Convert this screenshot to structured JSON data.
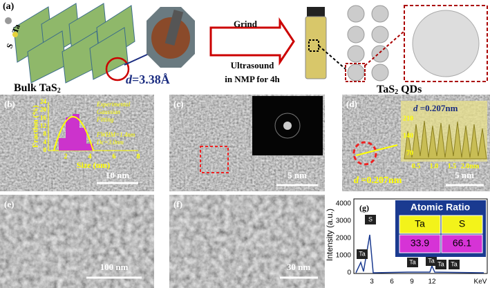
{
  "panel_a": {
    "label": "(a)",
    "atom_s": "S",
    "atom_ta": "Ta",
    "bulk": "Bulk TaS",
    "bulk_sub": "2",
    "spacing_symbol": "d",
    "spacing_value": "=3.38Å",
    "step_top": "Grind",
    "step_bottom_1": "Ultrasound",
    "step_bottom_2": "in NMP  for 4h",
    "qd": "TaS",
    "qd_sub": "2",
    "qd_end": " QDs"
  },
  "panel_b": {
    "label": "(b)",
    "y_axis": "Fraction (%)",
    "x_axis": "Size (nm)",
    "yticks": [
      "0",
      "4",
      "8",
      "12",
      "16",
      "20",
      "24"
    ],
    "xticks": [
      "2",
      "4",
      "6",
      "8"
    ],
    "legend": [
      "Experimental",
      "Gaussian",
      "Fitting"
    ],
    "fwhm": "FWHM=1.4nm",
    "dc": "Dc=3.0nm",
    "scale": "10 nm"
  },
  "panel_c": {
    "label": "(c)",
    "scale": "5 nm"
  },
  "panel_d": {
    "label": "(d)",
    "spacing_symbol": "d",
    "spacing_value": " =0.207nm",
    "spacing_symbol_2": "d",
    "spacing_value_2": " =0.207nm",
    "yticks": [
      "70",
      "140",
      "210"
    ],
    "xticks": [
      "0.5",
      "1.0",
      "1.5",
      "2.0nm"
    ],
    "scale": "5 nm"
  },
  "panel_e": {
    "label": "(e)",
    "scale": "100 nm"
  },
  "panel_f": {
    "label": "(f)",
    "scale": "30 nm"
  },
  "panel_g": {
    "label": "(g)",
    "y_axis": "Intensity (a.u.)",
    "x_unit": "KeV",
    "yticks": [
      "0",
      "1000",
      "2000",
      "3000",
      "4000"
    ],
    "xticks": [
      "3",
      "6",
      "9",
      "12"
    ],
    "table_title": "Atomic Ratio",
    "headers": [
      "Ta",
      "S"
    ],
    "values": [
      "33.9",
      "66.1"
    ],
    "peaks": [
      "Ta",
      "S",
      "Ta",
      "Ta",
      "Ta",
      "Ta"
    ]
  }
}
